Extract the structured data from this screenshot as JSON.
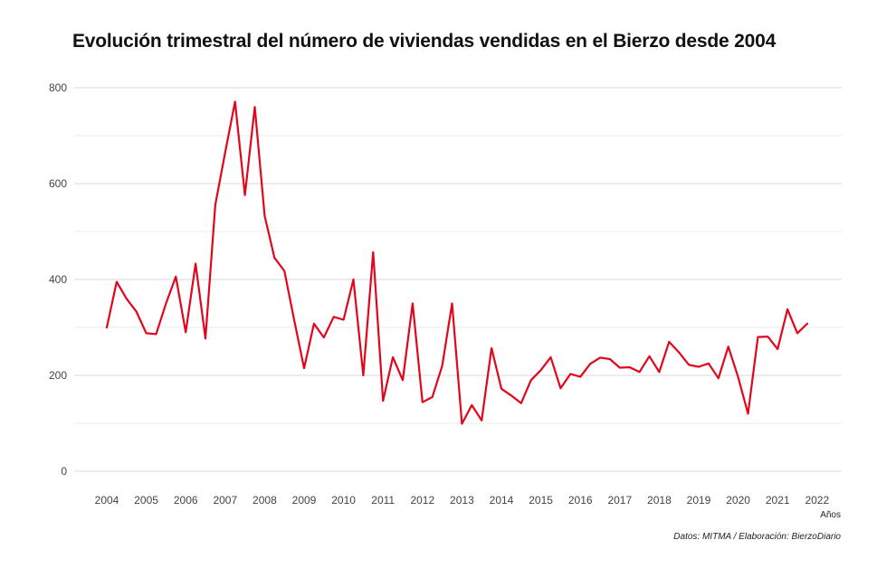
{
  "chart_data": {
    "type": "line",
    "title": "Evolución trimestral del número de viviendas vendidas en el Bierzo desde 2004",
    "xlabel": "Años",
    "ylabel": "",
    "caption": "Datos: MITMA / Elaboración: BierzoDiario",
    "ylim": [
      0,
      800
    ],
    "y_ticks": [
      "0",
      "200",
      "400",
      "600",
      "800"
    ],
    "x_ticks": [
      "2004",
      "2005",
      "2006",
      "2007",
      "2008",
      "2009",
      "2010",
      "2011",
      "2012",
      "2013",
      "2014",
      "2015",
      "2016",
      "2017",
      "2018",
      "2019",
      "2020",
      "2021",
      "2022"
    ],
    "grid": true,
    "series": [
      {
        "color": "#e3051b",
        "x": [
          "2004 T1",
          "2004 T2",
          "2004 T3",
          "2004 T4",
          "2005 T1",
          "2005 T2",
          "2005 T3",
          "2005 T4",
          "2006 T1",
          "2006 T2",
          "2006 T3",
          "2006 T4",
          "2007 T1",
          "2007 T2",
          "2007 T3",
          "2007 T4",
          "2008 T1",
          "2008 T2",
          "2008 T3",
          "2008 T4",
          "2009 T1",
          "2009 T2",
          "2009 T3",
          "2009 T4",
          "2010 T1",
          "2010 T2",
          "2010 T3",
          "2010 T4",
          "2011 T1",
          "2011 T2",
          "2011 T3",
          "2011 T4",
          "2012 T1",
          "2012 T2",
          "2012 T3",
          "2012 T4",
          "2013 T1",
          "2013 T2",
          "2013 T3",
          "2013 T4",
          "2014 T1",
          "2014 T2",
          "2014 T3",
          "2014 T4",
          "2015 T1",
          "2015 T2",
          "2015 T3",
          "2015 T4",
          "2016 T1",
          "2016 T2",
          "2016 T3",
          "2016 T4",
          "2017 T1",
          "2017 T2",
          "2017 T3",
          "2017 T4",
          "2018 T1",
          "2018 T2",
          "2018 T3",
          "2018 T4",
          "2019 T1",
          "2019 T2",
          "2019 T3",
          "2019 T4",
          "2020 T1",
          "2020 T2",
          "2020 T3",
          "2020 T4",
          "2021 T1",
          "2021 T2",
          "2021 T3",
          "2021 T4"
        ],
        "values": [
          300,
          395,
          360,
          333,
          288,
          286,
          350,
          406,
          290,
          433,
          277,
          556,
          665,
          771,
          576,
          760,
          533,
          445,
          418,
          315,
          215,
          308,
          279,
          322,
          316,
          400,
          200,
          457,
          147,
          238,
          190,
          350,
          144,
          155,
          220,
          350,
          99,
          138,
          106,
          257,
          172,
          158,
          142,
          190,
          211,
          238,
          173,
          203,
          197,
          224,
          237,
          234,
          216,
          217,
          207,
          240,
          207,
          270,
          248,
          222,
          218,
          225,
          194,
          260,
          196,
          120,
          280,
          281,
          255,
          338,
          288,
          308
        ]
      }
    ]
  }
}
